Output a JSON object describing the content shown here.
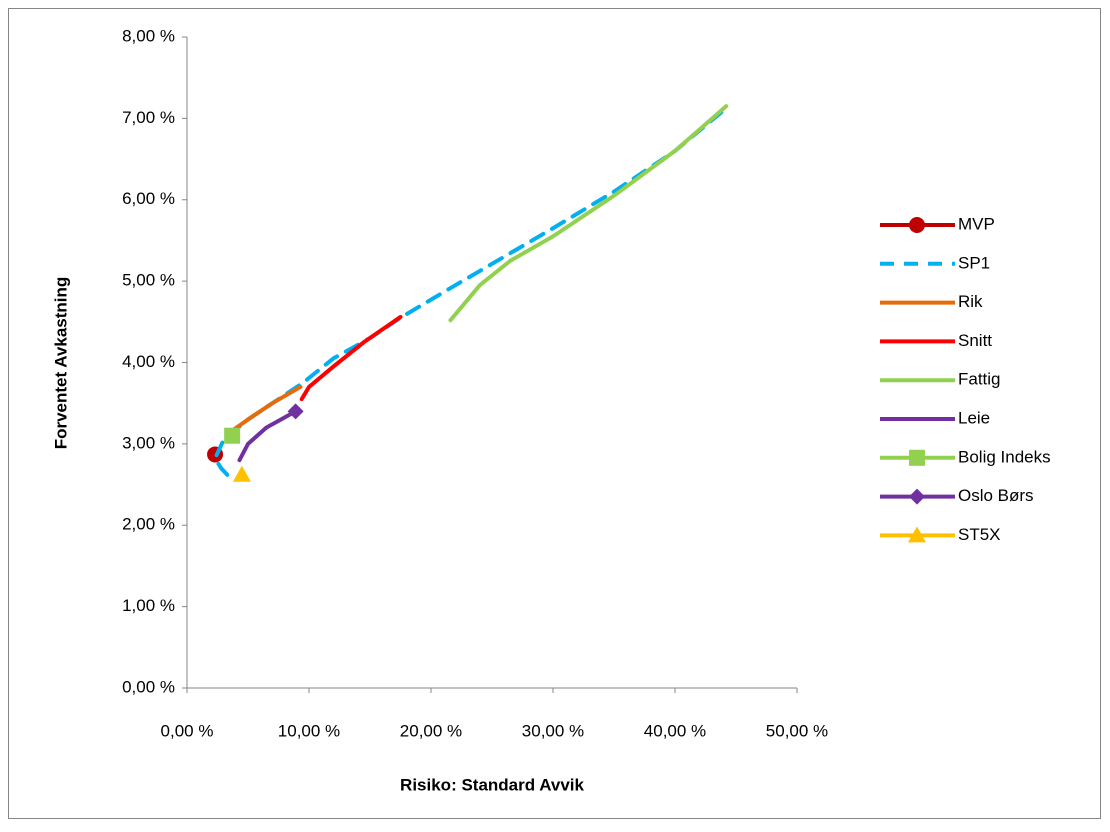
{
  "chart_data": {
    "type": "scatter-line",
    "x_label": "Risiko: Standard Avvik",
    "y_label": "Forventet Avkastning",
    "xlim": [
      0,
      50
    ],
    "ylim": [
      0,
      8
    ],
    "xticks": [
      {
        "value": 0,
        "label": "0,00 %"
      },
      {
        "value": 10,
        "label": "10,00 %"
      },
      {
        "value": 20,
        "label": "20,00 %"
      },
      {
        "value": 30,
        "label": "30,00 %"
      },
      {
        "value": 40,
        "label": "40,00 %"
      },
      {
        "value": 50,
        "label": "50,00 %"
      }
    ],
    "yticks": [
      {
        "value": 0,
        "label": "0,00 %"
      },
      {
        "value": 1,
        "label": "1,00 %"
      },
      {
        "value": 2,
        "label": "2,00 %"
      },
      {
        "value": 3,
        "label": "3,00 %"
      },
      {
        "value": 4,
        "label": "4,00 %"
      },
      {
        "value": 5,
        "label": "5,00 %"
      },
      {
        "value": 6,
        "label": "6,00 %"
      },
      {
        "value": 7,
        "label": "7,00 %"
      },
      {
        "value": 8,
        "label": "8,00 %"
      }
    ],
    "grid": false,
    "legend": "right",
    "series": [
      {
        "name": "MVP",
        "color": "#c00000",
        "marker": "circle",
        "x": [
          2.3
        ],
        "y": [
          2.87
        ]
      },
      {
        "name": "SP1",
        "color": "#00b0f0",
        "dash": true,
        "x": [
          3.3,
          2.8,
          2.3,
          3.0,
          5.0,
          7.5,
          9.5,
          12.0,
          15.0,
          17.5,
          22.0,
          26.0,
          30.0,
          35.0,
          40.0,
          44.0
        ],
        "y": [
          2.62,
          2.7,
          2.82,
          3.05,
          3.3,
          3.55,
          3.75,
          4.05,
          4.3,
          4.55,
          4.95,
          5.3,
          5.65,
          6.1,
          6.6,
          7.1
        ]
      },
      {
        "name": "Rik",
        "color": "#e46c0a",
        "x": [
          3.3,
          5.0,
          7.0,
          9.3
        ],
        "y": [
          3.12,
          3.3,
          3.5,
          3.7
        ]
      },
      {
        "name": "Snitt",
        "color": "#ff0000",
        "x": [
          9.4,
          10.0,
          12.0,
          14.5,
          17.5
        ],
        "y": [
          3.55,
          3.7,
          3.95,
          4.25,
          4.56
        ]
      },
      {
        "name": "Fattig",
        "color": "#92d050",
        "x": [
          21.6,
          24.0,
          26.5,
          30.0,
          35.0,
          40.0,
          44.2
        ],
        "y": [
          4.52,
          4.95,
          5.25,
          5.55,
          6.05,
          6.6,
          7.15
        ]
      },
      {
        "name": "Leie",
        "color": "#7030a0",
        "x": [
          4.3,
          5.0,
          6.5,
          8.9
        ],
        "y": [
          2.8,
          3.0,
          3.2,
          3.4
        ]
      },
      {
        "name": "Bolig Indeks",
        "color": "#92d050",
        "marker": "square",
        "x": [
          3.7
        ],
        "y": [
          3.1
        ]
      },
      {
        "name": "Oslo Børs",
        "color": "#7030a0",
        "marker": "diamond",
        "x": [
          8.9
        ],
        "y": [
          3.4
        ]
      },
      {
        "name": "ST5X",
        "color": "#ffc000",
        "marker": "triangle",
        "x": [
          4.5
        ],
        "y": [
          2.62
        ]
      }
    ]
  }
}
